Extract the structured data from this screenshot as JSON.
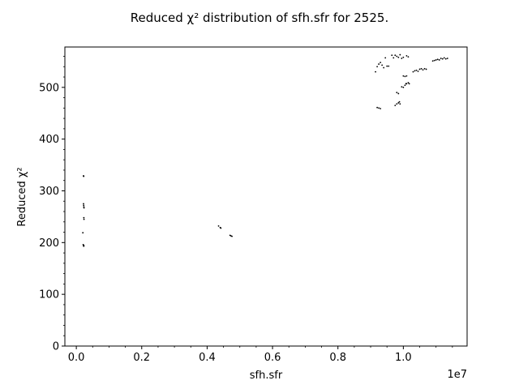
{
  "chart_data": {
    "type": "scatter",
    "title": "Reduced χ² distribution of sfh.sfr for 2525.",
    "xlabel": "sfh.sfr",
    "ylabel": "Reduced χ²",
    "x_offset_label": "1e7",
    "xlim": [
      -350000,
      11950000
    ],
    "ylim": [
      0,
      578
    ],
    "x_ticks": [
      0,
      2000000,
      4000000,
      6000000,
      8000000,
      10000000
    ],
    "x_tick_labels": [
      "0.0",
      "0.2",
      "0.4",
      "0.6",
      "0.8",
      "1.0"
    ],
    "y_ticks": [
      0,
      100,
      200,
      300,
      400,
      500
    ],
    "y_tick_labels": [
      "0",
      "100",
      "200",
      "300",
      "400",
      "500"
    ],
    "grid": false,
    "marker_color": "#000000",
    "series": [
      {
        "points": [
          [
            220000,
            329
          ],
          [
            225000,
            328
          ],
          [
            220000,
            275
          ],
          [
            225000,
            272
          ],
          [
            230000,
            269
          ],
          [
            235000,
            267
          ],
          [
            230000,
            248
          ],
          [
            235000,
            245
          ],
          [
            200000,
            219
          ],
          [
            210000,
            196
          ],
          [
            220000,
            195
          ],
          [
            230000,
            194
          ],
          [
            225000,
            193
          ],
          [
            4350000,
            232
          ],
          [
            4400000,
            229
          ],
          [
            4420000,
            228
          ],
          [
            4700000,
            214
          ],
          [
            4730000,
            213
          ],
          [
            4760000,
            212
          ],
          [
            9150000,
            530
          ],
          [
            9200000,
            540
          ],
          [
            9250000,
            545
          ],
          [
            9300000,
            548
          ],
          [
            9350000,
            543
          ],
          [
            9400000,
            538
          ],
          [
            9450000,
            557
          ],
          [
            9500000,
            541
          ],
          [
            9550000,
            541
          ],
          [
            9650000,
            562
          ],
          [
            9700000,
            557
          ],
          [
            9750000,
            562
          ],
          [
            9800000,
            560
          ],
          [
            9850000,
            558
          ],
          [
            9900000,
            563
          ],
          [
            9950000,
            556
          ],
          [
            10000000,
            558
          ],
          [
            10100000,
            561
          ],
          [
            10150000,
            559
          ],
          [
            9200000,
            461
          ],
          [
            9250000,
            460
          ],
          [
            9300000,
            459
          ],
          [
            9750000,
            465
          ],
          [
            9800000,
            468
          ],
          [
            9850000,
            470
          ],
          [
            9880000,
            472
          ],
          [
            9900000,
            468
          ],
          [
            9800000,
            490
          ],
          [
            9850000,
            488
          ],
          [
            9950000,
            501
          ],
          [
            10000000,
            500
          ],
          [
            10050000,
            504
          ],
          [
            10080000,
            507
          ],
          [
            10100000,
            507
          ],
          [
            10150000,
            509
          ],
          [
            10180000,
            507
          ],
          [
            10000000,
            522
          ],
          [
            10050000,
            521
          ],
          [
            10100000,
            522
          ],
          [
            10300000,
            530
          ],
          [
            10350000,
            532
          ],
          [
            10400000,
            533
          ],
          [
            10450000,
            531
          ],
          [
            10500000,
            535
          ],
          [
            10550000,
            536
          ],
          [
            10600000,
            534
          ],
          [
            10650000,
            536
          ],
          [
            10700000,
            535
          ],
          [
            10900000,
            551
          ],
          [
            10950000,
            552
          ],
          [
            11000000,
            553
          ],
          [
            11050000,
            554
          ],
          [
            11100000,
            553
          ],
          [
            11150000,
            556
          ],
          [
            11200000,
            555
          ],
          [
            11250000,
            557
          ],
          [
            11300000,
            555
          ],
          [
            11350000,
            556
          ]
        ]
      }
    ]
  }
}
